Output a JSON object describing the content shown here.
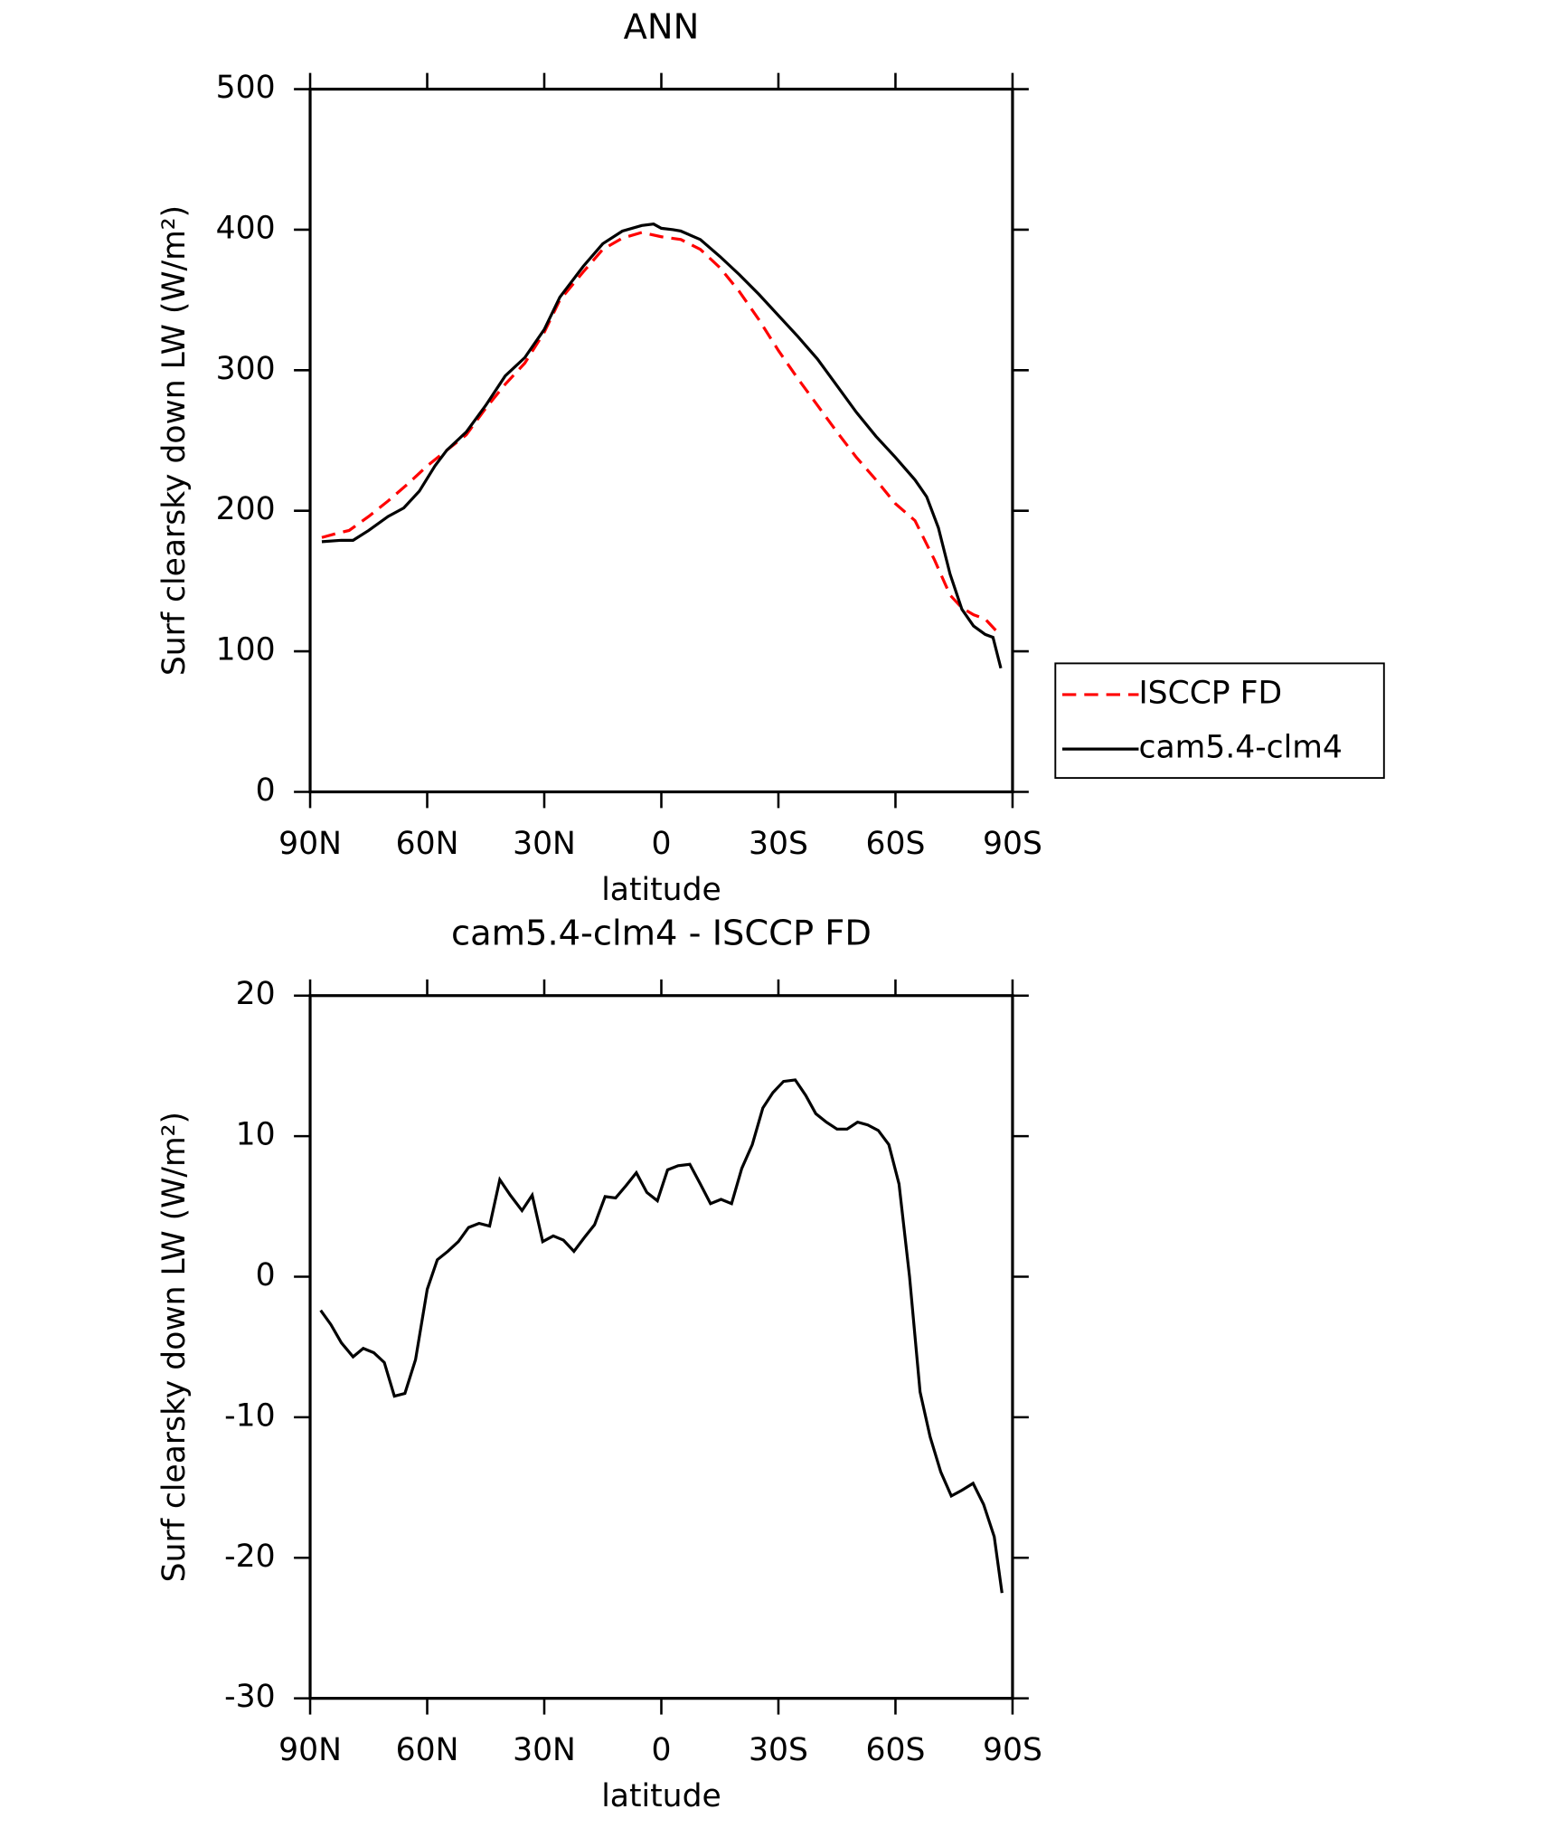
{
  "chart_data": [
    {
      "type": "line",
      "title": "ANN",
      "xlabel": "latitude",
      "ylabel": "Surf clearsky down LW (W/m²)",
      "xlim": [
        90,
        -90
      ],
      "xticks": [
        {
          "value": 90,
          "label": "90N"
        },
        {
          "value": 60,
          "label": "60N"
        },
        {
          "value": 30,
          "label": "30N"
        },
        0,
        {
          "value": -30,
          "label": "30S"
        },
        {
          "value": -60,
          "label": "60S"
        },
        {
          "value": -90,
          "label": "90S"
        }
      ],
      "ylim": [
        0,
        500
      ],
      "yticks": [
        0,
        100,
        200,
        300,
        400,
        500
      ],
      "legend": "right",
      "series": [
        {
          "name": "ISCCP FD",
          "color": "#ff0000",
          "dash": "dashed",
          "x": [
            87,
            83,
            80,
            75,
            70,
            65,
            60,
            55,
            50,
            45,
            40,
            35,
            30,
            26,
            20,
            15,
            10,
            5,
            0,
            -5,
            -10,
            -15,
            -20,
            -25,
            -30,
            -35,
            -40,
            -45,
            -50,
            -55,
            -60,
            -65,
            -70,
            -74,
            -77,
            -80,
            -83,
            -87
          ],
          "values": [
            181,
            184,
            186,
            196,
            207,
            219,
            232,
            243,
            254,
            273,
            290,
            305,
            327,
            350,
            370,
            386,
            394,
            398,
            395,
            393,
            386,
            373,
            356,
            336,
            314,
            294,
            275,
            256,
            238,
            222,
            205,
            193,
            165,
            140,
            131,
            126,
            123,
            111
          ]
        },
        {
          "name": "cam5.4-clm4",
          "color": "#000000",
          "dash": "solid",
          "x": [
            87,
            82,
            79,
            75,
            70,
            66,
            62,
            58,
            55,
            50,
            45,
            40,
            35,
            30,
            26,
            20,
            15,
            10,
            5,
            2,
            0,
            -3,
            -5,
            -10,
            -15,
            -20,
            -25,
            -30,
            -35,
            -40,
            -45,
            -50,
            -55,
            -60,
            -65,
            -68,
            -71,
            -74,
            -77,
            -80,
            -83,
            -85,
            -87
          ],
          "values": [
            178,
            179,
            179,
            186,
            196,
            202,
            214,
            232,
            243,
            256,
            275,
            296,
            309,
            329,
            352,
            374,
            390,
            399,
            403,
            404,
            401,
            400,
            399,
            393,
            381,
            368,
            354,
            339,
            324,
            308,
            289,
            270,
            253,
            238,
            222,
            210,
            188,
            155,
            130,
            118,
            112,
            110,
            88
          ]
        }
      ]
    },
    {
      "type": "line",
      "title": "cam5.4-clm4 - ISCCP FD",
      "xlabel": "latitude",
      "ylabel": "Surf clearsky down LW (W/m²)",
      "xlim": [
        90,
        -90
      ],
      "xticks": [
        {
          "value": 90,
          "label": "90N"
        },
        {
          "value": 60,
          "label": "60N"
        },
        {
          "value": 30,
          "label": "30N"
        },
        0,
        {
          "value": -30,
          "label": "30S"
        },
        {
          "value": -60,
          "label": "60S"
        },
        {
          "value": -90,
          "label": "90S"
        }
      ],
      "ylim": [
        -30,
        20
      ],
      "yticks": [
        -30,
        -20,
        -10,
        0,
        10,
        20
      ],
      "series": [
        {
          "color": "#000000",
          "dash": "solid",
          "x": [
            87.3,
            84.7,
            82.0,
            79.0,
            76.4,
            73.7,
            71.0,
            68.4,
            65.7,
            63.0,
            60.0,
            57.4,
            54.7,
            52.0,
            49.4,
            46.7,
            44.0,
            41.4,
            38.7,
            35.7,
            33.1,
            30.4,
            27.7,
            25.1,
            22.4,
            19.7,
            17.1,
            14.4,
            11.7,
            9.0,
            6.4,
            3.7,
            1.0,
            -1.6,
            -4.3,
            -7.3,
            -10.0,
            -12.6,
            -15.3,
            -18.0,
            -20.6,
            -23.3,
            -26.0,
            -28.6,
            -31.3,
            -34.3,
            -37.0,
            -39.6,
            -42.3,
            -45.0,
            -47.6,
            -50.3,
            -52.9,
            -55.6,
            -58.3,
            -60.9,
            -63.6,
            -66.3,
            -68.9,
            -71.6,
            -74.3,
            -77.0,
            -79.9,
            -82.6,
            -85.3,
            -87.3
          ],
          "values": [
            -2.4,
            -3.4,
            -4.7,
            -5.7,
            -5.1,
            -5.4,
            -6.1,
            -8.5,
            -8.3,
            -5.9,
            -0.9,
            1.2,
            1.8,
            2.5,
            3.5,
            3.8,
            3.6,
            6.9,
            5.8,
            4.7,
            5.8,
            2.5,
            2.9,
            2.6,
            1.8,
            2.8,
            3.7,
            5.7,
            5.6,
            6.5,
            7.4,
            6.0,
            5.4,
            7.6,
            7.9,
            8.0,
            6.6,
            5.2,
            5.5,
            5.2,
            7.7,
            9.4,
            12.0,
            13.1,
            13.9,
            14.0,
            12.9,
            11.6,
            11.0,
            10.5,
            10.5,
            11.0,
            10.8,
            10.4,
            9.4,
            6.6,
            0.0,
            -8.2,
            -11.4,
            -13.9,
            -15.6,
            -15.2,
            -14.7,
            -16.2,
            -18.5,
            -22.5
          ]
        }
      ]
    }
  ]
}
